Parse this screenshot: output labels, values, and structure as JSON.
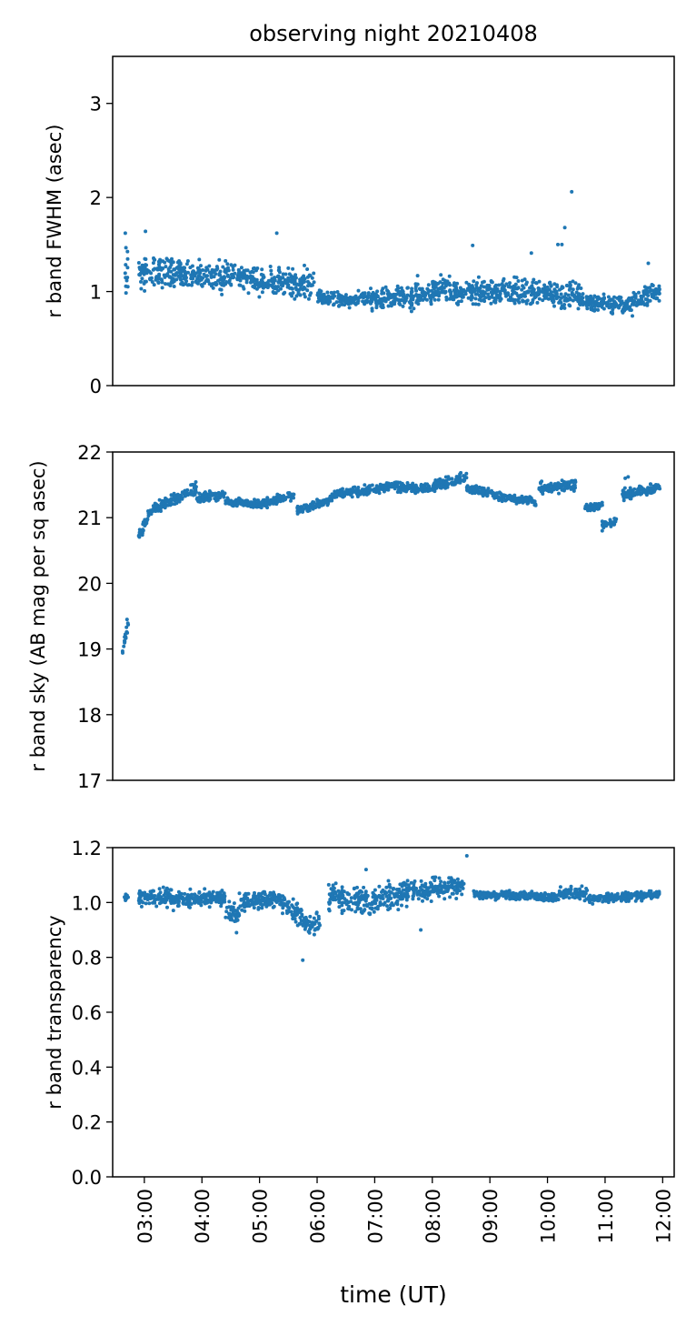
{
  "figure": {
    "title": "observing night 20210408",
    "xlabel": "time (UT)",
    "x_tick_labels": [
      "03:00",
      "04:00",
      "05:00",
      "06:00",
      "07:00",
      "08:00",
      "09:00",
      "10:00",
      "11:00",
      "12:00"
    ],
    "point_color": "#1f77b4"
  },
  "chart_data": [
    {
      "type": "scatter",
      "ylabel": "r band FWHM (asec)",
      "ylim": [
        0,
        3.5
      ],
      "yticks": [
        0,
        1,
        2,
        3
      ],
      "x_unit": "hours UT",
      "xlim": [
        2.45,
        12.2
      ],
      "segments": [
        {
          "x0": 2.65,
          "x1": 2.72,
          "base": [
            1.15,
            1.35
          ],
          "spread": 0.22
        },
        {
          "x0": 2.9,
          "x1": 3.5,
          "base": [
            1.2,
            1.2
          ],
          "spread": 0.12
        },
        {
          "x0": 3.5,
          "x1": 4.2,
          "base": [
            1.2,
            1.15
          ],
          "spread": 0.11
        },
        {
          "x0": 4.2,
          "x1": 4.6,
          "base": [
            1.15,
            1.2
          ],
          "spread": 0.12
        },
        {
          "x0": 4.6,
          "x1": 5.3,
          "base": [
            1.15,
            1.1
          ],
          "spread": 0.11
        },
        {
          "x0": 5.3,
          "x1": 5.95,
          "base": [
            1.1,
            1.08
          ],
          "spread": 0.13
        },
        {
          "x0": 6.0,
          "x1": 6.5,
          "base": [
            0.95,
            0.9
          ],
          "spread": 0.06
        },
        {
          "x0": 6.5,
          "x1": 6.9,
          "base": [
            0.88,
            0.95
          ],
          "spread": 0.06
        },
        {
          "x0": 6.9,
          "x1": 7.6,
          "base": [
            0.92,
            0.95
          ],
          "spread": 0.08
        },
        {
          "x0": 7.6,
          "x1": 8.3,
          "base": [
            0.95,
            1.05
          ],
          "spread": 0.12
        },
        {
          "x0": 8.3,
          "x1": 9.2,
          "base": [
            1.0,
            0.98
          ],
          "spread": 0.1
        },
        {
          "x0": 9.2,
          "x1": 10.6,
          "base": [
            1.0,
            0.95
          ],
          "spread": 0.11
        },
        {
          "x0": 10.6,
          "x1": 11.4,
          "base": [
            0.9,
            0.85
          ],
          "spread": 0.07
        },
        {
          "x0": 11.4,
          "x1": 11.95,
          "base": [
            0.88,
            1.0
          ],
          "spread": 0.09
        }
      ],
      "outliers": [
        [
          2.67,
          1.62
        ],
        [
          3.02,
          1.64
        ],
        [
          5.3,
          1.62
        ],
        [
          8.7,
          1.49
        ],
        [
          10.3,
          1.68
        ],
        [
          10.42,
          2.06
        ],
        [
          10.18,
          1.5
        ],
        [
          10.25,
          1.5
        ],
        [
          9.72,
          1.41
        ],
        [
          11.75,
          1.3
        ]
      ]
    },
    {
      "type": "scatter",
      "ylabel": "r band sky (AB mag per sq asec)",
      "ylim": [
        17,
        22
      ],
      "yticks": [
        17,
        18,
        19,
        20,
        21,
        22
      ],
      "x_unit": "hours UT",
      "xlim": [
        2.45,
        12.2
      ],
      "segments": [
        {
          "x0": 2.62,
          "x1": 2.72,
          "base": [
            18.95,
            19.4
          ],
          "spread": 0.06
        },
        {
          "x0": 2.9,
          "x1": 3.1,
          "base": [
            20.7,
            21.1
          ],
          "spread": 0.07
        },
        {
          "x0": 3.1,
          "x1": 3.9,
          "base": [
            21.1,
            21.45
          ],
          "spread": 0.07
        },
        {
          "x0": 3.9,
          "x1": 4.4,
          "base": [
            21.3,
            21.35
          ],
          "spread": 0.06
        },
        {
          "x0": 4.4,
          "x1": 5.0,
          "base": [
            21.25,
            21.2
          ],
          "spread": 0.05
        },
        {
          "x0": 5.0,
          "x1": 5.6,
          "base": [
            21.2,
            21.35
          ],
          "spread": 0.05
        },
        {
          "x0": 5.65,
          "x1": 6.2,
          "base": [
            21.1,
            21.25
          ],
          "spread": 0.05
        },
        {
          "x0": 6.2,
          "x1": 6.6,
          "base": [
            21.3,
            21.42
          ],
          "spread": 0.05
        },
        {
          "x0": 6.6,
          "x1": 7.4,
          "base": [
            21.38,
            21.5
          ],
          "spread": 0.06
        },
        {
          "x0": 7.4,
          "x1": 8.0,
          "base": [
            21.45,
            21.45
          ],
          "spread": 0.06
        },
        {
          "x0": 8.0,
          "x1": 8.6,
          "base": [
            21.5,
            21.6
          ],
          "spread": 0.07
        },
        {
          "x0": 8.6,
          "x1": 9.3,
          "base": [
            21.45,
            21.3
          ],
          "spread": 0.05
        },
        {
          "x0": 9.3,
          "x1": 9.8,
          "base": [
            21.3,
            21.25
          ],
          "spread": 0.05
        },
        {
          "x0": 9.85,
          "x1": 10.5,
          "base": [
            21.45,
            21.5
          ],
          "spread": 0.07
        },
        {
          "x0": 10.65,
          "x1": 10.95,
          "base": [
            21.15,
            21.18
          ],
          "spread": 0.04
        },
        {
          "x0": 10.95,
          "x1": 11.2,
          "base": [
            20.88,
            20.95
          ],
          "spread": 0.04
        },
        {
          "x0": 11.3,
          "x1": 11.95,
          "base": [
            21.35,
            21.45
          ],
          "spread": 0.07
        }
      ],
      "outliers": [
        [
          2.7,
          19.45
        ],
        [
          3.03,
          20.95
        ],
        [
          10.95,
          20.8
        ],
        [
          11.35,
          21.6
        ],
        [
          11.4,
          21.62
        ]
      ]
    },
    {
      "type": "scatter",
      "ylabel": "r band transparency",
      "ylim": [
        0.0,
        1.2
      ],
      "yticks": [
        0.0,
        0.2,
        0.4,
        0.6,
        0.8,
        1.0,
        1.2
      ],
      "x_unit": "hours UT",
      "xlim": [
        2.45,
        12.2
      ],
      "segments": [
        {
          "x0": 2.65,
          "x1": 2.72,
          "base": [
            1.02,
            1.02
          ],
          "spread": 0.01
        },
        {
          "x0": 2.9,
          "x1": 3.5,
          "base": [
            1.02,
            1.02
          ],
          "spread": 0.025
        },
        {
          "x0": 3.5,
          "x1": 4.4,
          "base": [
            1.01,
            1.02
          ],
          "spread": 0.025
        },
        {
          "x0": 4.4,
          "x1": 4.65,
          "base": [
            0.98,
            0.95
          ],
          "spread": 0.03
        },
        {
          "x0": 4.65,
          "x1": 5.4,
          "base": [
            1.0,
            1.02
          ],
          "spread": 0.025
        },
        {
          "x0": 5.4,
          "x1": 5.75,
          "base": [
            1.0,
            0.95
          ],
          "spread": 0.03
        },
        {
          "x0": 5.75,
          "x1": 6.05,
          "base": [
            0.93,
            0.92
          ],
          "spread": 0.03
        },
        {
          "x0": 6.2,
          "x1": 6.95,
          "base": [
            1.02,
            1.0
          ],
          "spread": 0.04
        },
        {
          "x0": 6.95,
          "x1": 7.7,
          "base": [
            1.0,
            1.05
          ],
          "spread": 0.04
        },
        {
          "x0": 7.7,
          "x1": 8.55,
          "base": [
            1.04,
            1.06
          ],
          "spread": 0.03
        },
        {
          "x0": 8.7,
          "x1": 10.2,
          "base": [
            1.03,
            1.02
          ],
          "spread": 0.012
        },
        {
          "x0": 10.2,
          "x1": 10.7,
          "base": [
            1.04,
            1.03
          ],
          "spread": 0.02
        },
        {
          "x0": 10.7,
          "x1": 11.95,
          "base": [
            1.01,
            1.03
          ],
          "spread": 0.012
        }
      ],
      "outliers": [
        [
          5.75,
          0.79
        ],
        [
          8.6,
          1.17
        ],
        [
          6.85,
          1.12
        ],
        [
          4.6,
          0.89
        ],
        [
          7.8,
          0.9
        ]
      ]
    }
  ]
}
